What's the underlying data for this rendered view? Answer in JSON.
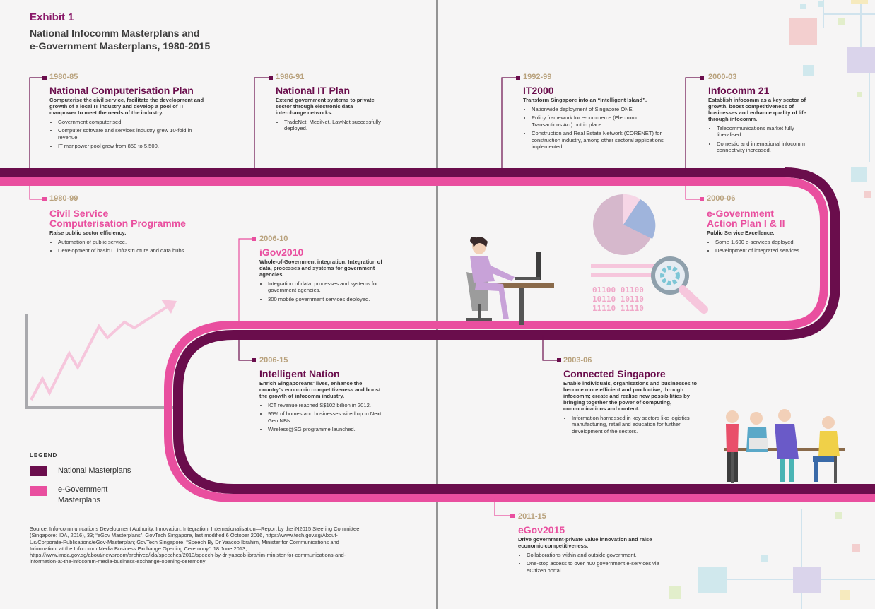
{
  "exhibit_label": "Exhibit 1",
  "title_line1": "National Infocomm Masterplans and",
  "title_line2": "e-Government Masterplans, 1980-2015",
  "colors": {
    "national": "#6a0d4c",
    "egov": "#e94f9f",
    "period": "#b9a27d"
  },
  "plans": {
    "ncp": {
      "period": "1980-85",
      "title": "National Computerisation Plan",
      "lead": "Computerise the civil service, facilitate the development and growth of a local IT industry and develop a pool of IT manpower to meet the needs of the industry.",
      "bullets": [
        "Government computerised.",
        "Computer software and services industry grew 10-fold in revenue.",
        "IT manpower pool grew from 850 to 5,500."
      ]
    },
    "nitp": {
      "period": "1986-91",
      "title": "National IT Plan",
      "lead": "Extend government systems to private sector through electronic data interchange networks.",
      "bullets": [
        "TradeNet, MediNet, LawNet successfully deployed."
      ]
    },
    "it2000": {
      "period": "1992-99",
      "title": "IT2000",
      "lead": "Transform Singapore into an “Intelligent Island”.",
      "bullets": [
        "Nationwide deployment of Singapore ONE.",
        "Policy framework for e-commerce (Electronic Transactions Act) put in place.",
        "Construction and Real Estate Network (CORENET) for construction industry, among other sectoral applications implemented."
      ]
    },
    "ic21": {
      "period": "2000-03",
      "title": "Infocomm 21",
      "lead": "Establish infocomm as a key sector of growth, boost competitiveness of businesses and enhance quality of life through infocomm.",
      "bullets": [
        "Telecommunications market fully liberalised.",
        "Domestic and international infocomm connectivity increased."
      ]
    },
    "cscp": {
      "period": "1980-99",
      "title_line1": "Civil Service",
      "title_line2": "Computerisation Programme",
      "lead": "Raise public sector efficiency.",
      "bullets": [
        "Automation of public service.",
        "Development of basic IT infrastructure and data hubs."
      ]
    },
    "egap": {
      "period": "2000-06",
      "title_line1": "e-Government",
      "title_line2": "Action Plan I & II",
      "lead": "Public Service Excellence.",
      "bullets": [
        "Some 1,600 e-services deployed.",
        "Development of integrated services."
      ]
    },
    "igov": {
      "period": "2006-10",
      "title": "iGov2010",
      "lead": "Whole-of-Government integration. Integration of data, processes and systems for government agencies.",
      "bullets": [
        "Integration of data, processes and systems for government agencies.",
        "300 mobile government services deployed."
      ]
    },
    "in2015": {
      "period": "2006-15",
      "title": "Intelligent Nation",
      "lead": "Enrich Singaporeans' lives, enhance the country's economic competitiveness and boost the growth of infocomm industry.",
      "bullets": [
        "ICT revenue reached S$102 billion in 2012.",
        "95% of homes and businesses wired up to Next Gen NBN.",
        "Wireless@SG programme launched."
      ]
    },
    "cs": {
      "period": "2003-06",
      "title": "Connected Singapore",
      "lead": "Enable individuals, organisations and businesses to become more efficient and productive, through infocomm; create and realise new possibilities by bringing together the power of computing, communications and content.",
      "bullets": [
        "Information harnessed in key sectors like logistics manufacturing, retail and education for further development of the sectors."
      ]
    },
    "egov2015": {
      "period": "2011-15",
      "title": "eGov2015",
      "lead": "Drive government-private value innovation and raise economic competitiveness.",
      "bullets": [
        "Collaborations within and outside government.",
        "One-stop access to over 400 government e-services via eCitizen portal."
      ]
    }
  },
  "binary_lines": [
    "01100 01100",
    "10110 10110",
    "11110 11110"
  ],
  "legend": {
    "title": "LEGEND",
    "national_label": "National Masterplans",
    "egov_line1": "e-Government",
    "egov_line2": "Masterplans"
  },
  "source": "Source: Info-communications Development Authority, Innovation, Integration, Internationalisation—Report by the iN2015 Steering Committee (Singapore: IDA, 2016), 33; “eGov Masterplans”, GovTech Singapore, last modified 6 October 2016, https://www.tech.gov.sg/About-Us/Corporate-Publications/eGov-Masterplan; GovTech Singapore, “Speech By Dr Yaacob Ibrahim, Minister for Communications and Information, at the Infocomm Media Business Exchange Opening Ceremony”, 18 June 2013, https://www.imda.gov.sg/about/newsroom/archived/ida/speeches/2013/speech-by-dr-yaacob-ibrahim-minister-for-communications-and-information-at-the-infocomm-media-business-exchange-opening-ceremony"
}
